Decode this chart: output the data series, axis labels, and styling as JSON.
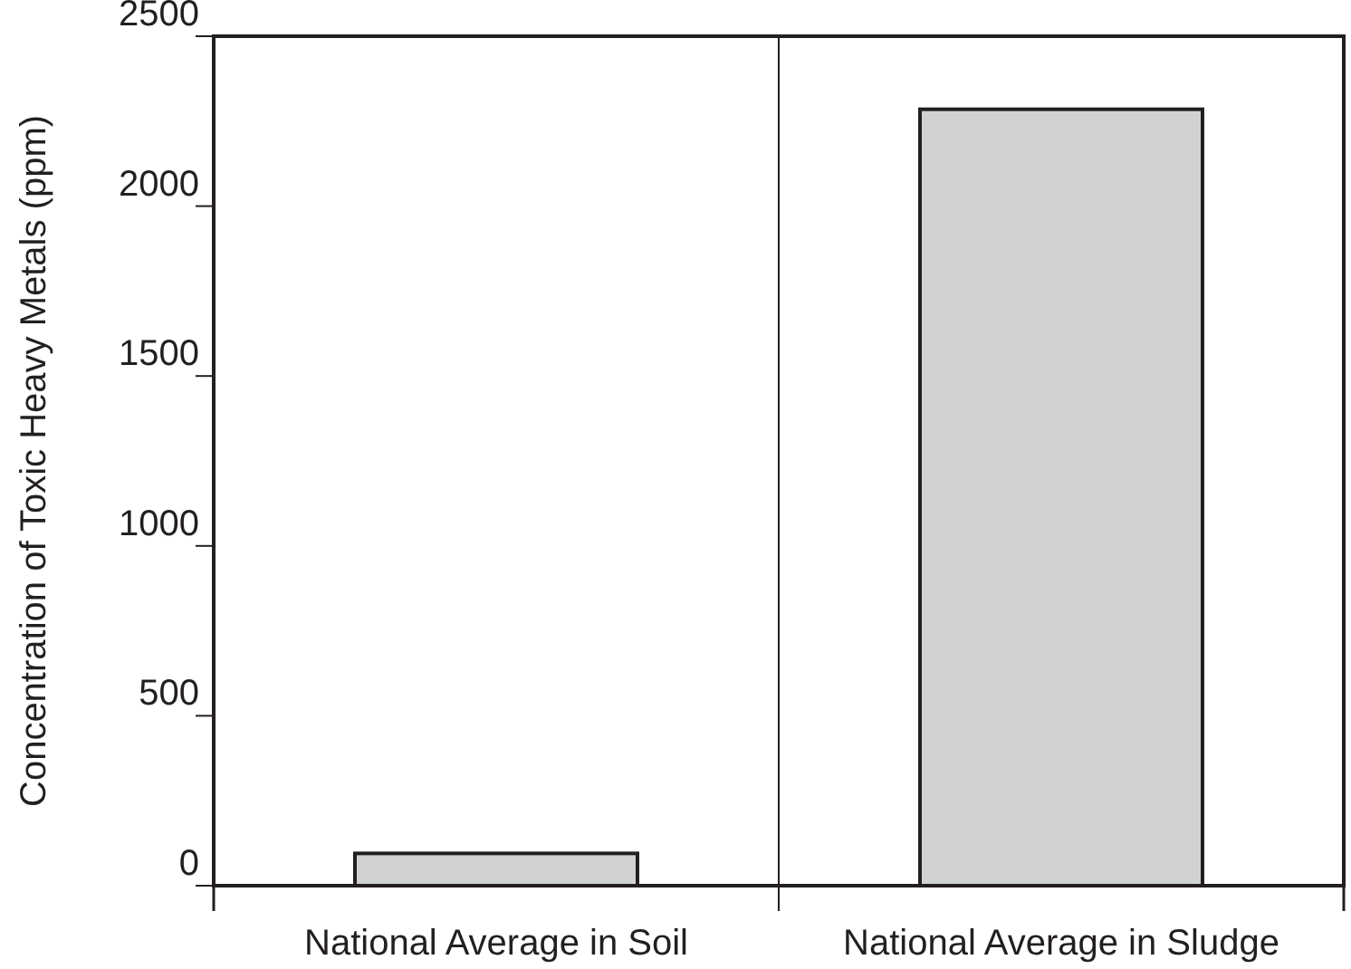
{
  "chart_data": {
    "type": "bar",
    "ylabel": "Concentration of Toxic Heavy Metals (ppm)",
    "categories": [
      "National Average in Soil",
      "National Average in Sludge"
    ],
    "values": [
      95,
      2285
    ],
    "color": "#d1d2d4",
    "ylim": [
      0,
      2500
    ],
    "yticks": [
      0,
      500,
      1000,
      1500,
      2000,
      2500
    ],
    "grid": false
  }
}
